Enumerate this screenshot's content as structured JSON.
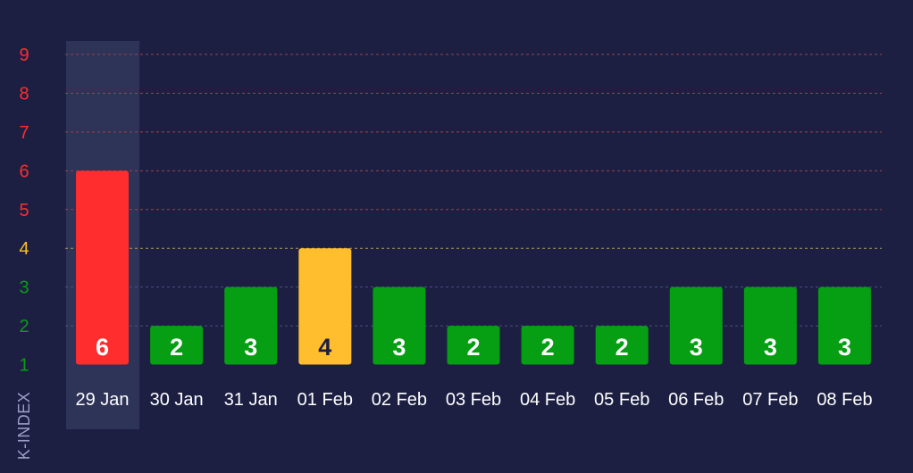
{
  "chart_data": {
    "type": "bar",
    "ylabel": "K-INDEX",
    "xlabel": "",
    "ylim": [
      0,
      9
    ],
    "yticks": [
      1,
      2,
      3,
      4,
      5,
      6,
      7,
      8,
      9
    ],
    "categories": [
      "29 Jan",
      "30 Jan",
      "31 Jan",
      "01 Feb",
      "02 Feb",
      "03 Feb",
      "04 Feb",
      "05 Feb",
      "06 Feb",
      "07 Feb",
      "08 Feb"
    ],
    "values": [
      6,
      2,
      3,
      4,
      3,
      2,
      2,
      2,
      3,
      3,
      3
    ],
    "highlighted_category": "29 Jan",
    "grid": true,
    "legend": "none",
    "colors": {
      "background": "#1c1f42",
      "highlight_column": "#2e3358",
      "quiet": "#069e12",
      "active": "#ffbe2e",
      "storm": "#ff2d2d",
      "grid_quiet": "#4a5080",
      "grid_active": "#b09a55",
      "grid_storm": "#a0404a",
      "label_dark": "#1c1f42",
      "label_light": "#ffffff"
    }
  }
}
